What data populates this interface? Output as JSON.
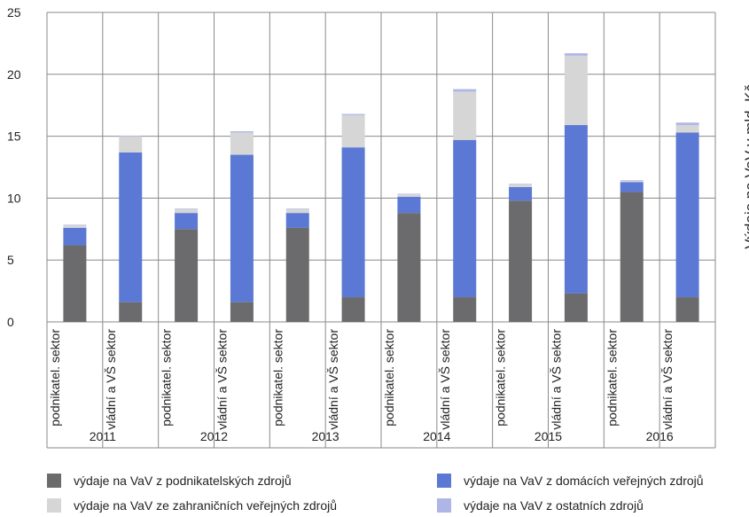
{
  "chart_data": {
    "type": "bar",
    "stacked": true,
    "ylabel": "Výdaje na VaV v mld. Kč",
    "ylim": [
      0,
      25
    ],
    "yticks": [
      0,
      5,
      10,
      15,
      20,
      25
    ],
    "grid": true,
    "legend_position": "bottom",
    "groups": [
      "2011",
      "2012",
      "2013",
      "2014",
      "2015",
      "2016"
    ],
    "categories": [
      {
        "label": "podnikatel. sektor",
        "group": "2011"
      },
      {
        "label": "vládní a VŠ sektor",
        "group": "2011"
      },
      {
        "label": "podnikatel. sektor",
        "group": "2012"
      },
      {
        "label": "vládní a VŠ sektor",
        "group": "2012"
      },
      {
        "label": "podnikatel. sektor",
        "group": "2013"
      },
      {
        "label": "vládní a VŠ sektor",
        "group": "2013"
      },
      {
        "label": "podnikatel. sektor",
        "group": "2014"
      },
      {
        "label": "vládní a VŠ sektor",
        "group": "2014"
      },
      {
        "label": "podnikatel. sektor",
        "group": "2015"
      },
      {
        "label": "vládní a VŠ sektor",
        "group": "2015"
      },
      {
        "label": "podnikatel. sektor",
        "group": "2016"
      },
      {
        "label": "vládní a VŠ sektor",
        "group": "2016"
      }
    ],
    "series": [
      {
        "name": "výdaje na VaV z podnikatelských zdrojů",
        "color": "#6b6b6d",
        "values": [
          6.2,
          1.6,
          7.5,
          1.6,
          7.6,
          2.0,
          8.8,
          2.0,
          9.8,
          2.3,
          10.5,
          2.0
        ]
      },
      {
        "name": "výdaje na VaV z domácích veřejných zdrojů",
        "color": "#5b79d4",
        "values": [
          1.4,
          12.1,
          1.3,
          11.9,
          1.2,
          12.1,
          1.3,
          12.7,
          1.1,
          13.6,
          0.8,
          13.3
        ]
      },
      {
        "name": "výdaje na VaV ze zahraničních veřejných zdrojů",
        "color": "#d6d6d6",
        "values": [
          0.2,
          1.3,
          0.3,
          1.8,
          0.3,
          2.6,
          0.2,
          3.9,
          0.2,
          5.6,
          0.1,
          0.6
        ]
      },
      {
        "name": "výdaje na VaV z ostatních zdrojů",
        "color": "#aeb6e8",
        "values": [
          0.05,
          0.05,
          0.05,
          0.1,
          0.05,
          0.1,
          0.05,
          0.2,
          0.05,
          0.2,
          0.05,
          0.2
        ]
      }
    ]
  }
}
